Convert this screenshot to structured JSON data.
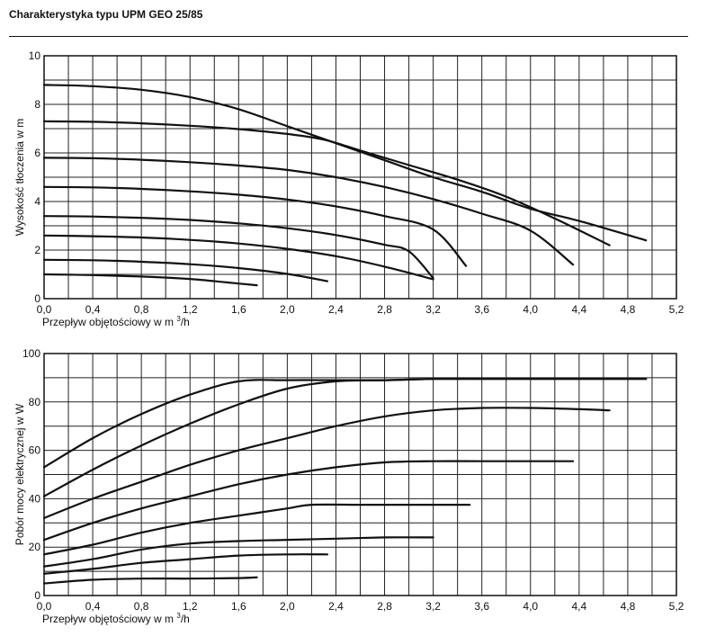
{
  "header": {
    "title": "Charakterystyka typu UPM GEO 25/85"
  },
  "chart_data": [
    {
      "type": "line",
      "xlabel": "Przepływ objętościowy w m",
      "xlabel_superscript": "3",
      "xlabel_suffix": "/h",
      "ylabel": "Wysokość tłoczenia w m",
      "xlim": [
        0,
        5.2
      ],
      "ylim": [
        0,
        10
      ],
      "x_ticks": [
        "0,0",
        "0,4",
        "0,8",
        "1,2",
        "1,6",
        "2,0",
        "2,4",
        "2,8",
        "3,2",
        "3,6",
        "4,0",
        "4,4",
        "4,8",
        "5,2"
      ],
      "y_ticks": [
        "0",
        "2",
        "4",
        "6",
        "8",
        "10"
      ],
      "grid": true,
      "series": [
        {
          "points": [
            [
              0,
              8.8
            ],
            [
              0.4,
              8.75
            ],
            [
              0.8,
              8.6
            ],
            [
              1.2,
              8.3
            ],
            [
              1.6,
              7.8
            ],
            [
              2.0,
              7.1
            ],
            [
              2.4,
              6.4
            ],
            [
              2.8,
              5.7
            ],
            [
              3.2,
              5.0
            ],
            [
              3.6,
              4.4
            ],
            [
              4.0,
              3.7
            ],
            [
              4.4,
              3.2
            ],
            [
              4.95,
              2.4
            ]
          ]
        },
        {
          "points": [
            [
              0,
              7.3
            ],
            [
              0.4,
              7.28
            ],
            [
              0.8,
              7.22
            ],
            [
              1.2,
              7.12
            ],
            [
              1.6,
              6.98
            ],
            [
              2.0,
              6.78
            ],
            [
              2.3,
              6.55
            ],
            [
              2.6,
              6.1
            ],
            [
              3.0,
              5.5
            ],
            [
              3.4,
              4.9
            ],
            [
              3.8,
              4.2
            ],
            [
              4.2,
              3.3
            ],
            [
              4.65,
              2.2
            ]
          ]
        },
        {
          "points": [
            [
              0,
              5.8
            ],
            [
              0.4,
              5.78
            ],
            [
              0.8,
              5.72
            ],
            [
              1.2,
              5.62
            ],
            [
              1.6,
              5.48
            ],
            [
              2.0,
              5.3
            ],
            [
              2.4,
              5.0
            ],
            [
              2.8,
              4.6
            ],
            [
              3.2,
              4.1
            ],
            [
              3.6,
              3.5
            ],
            [
              4.0,
              2.8
            ],
            [
              4.35,
              1.4
            ]
          ]
        },
        {
          "points": [
            [
              0,
              4.6
            ],
            [
              0.4,
              4.58
            ],
            [
              0.8,
              4.52
            ],
            [
              1.2,
              4.42
            ],
            [
              1.6,
              4.28
            ],
            [
              2.0,
              4.08
            ],
            [
              2.4,
              3.8
            ],
            [
              2.8,
              3.4
            ],
            [
              3.2,
              2.85
            ],
            [
              3.47,
              1.35
            ]
          ]
        },
        {
          "points": [
            [
              0,
              3.4
            ],
            [
              0.4,
              3.38
            ],
            [
              0.8,
              3.33
            ],
            [
              1.2,
              3.24
            ],
            [
              1.6,
              3.1
            ],
            [
              2.0,
              2.9
            ],
            [
              2.4,
              2.62
            ],
            [
              2.8,
              2.22
            ],
            [
              3.0,
              1.95
            ],
            [
              3.2,
              0.85
            ]
          ]
        },
        {
          "points": [
            [
              0,
              2.6
            ],
            [
              0.4,
              2.57
            ],
            [
              0.8,
              2.52
            ],
            [
              1.2,
              2.42
            ],
            [
              1.6,
              2.27
            ],
            [
              2.0,
              2.05
            ],
            [
              2.4,
              1.75
            ],
            [
              2.8,
              1.32
            ],
            [
              3.2,
              0.8
            ]
          ]
        },
        {
          "points": [
            [
              0,
              1.6
            ],
            [
              0.4,
              1.58
            ],
            [
              0.8,
              1.52
            ],
            [
              1.2,
              1.42
            ],
            [
              1.6,
              1.26
            ],
            [
              2.0,
              1.02
            ],
            [
              2.33,
              0.72
            ]
          ]
        },
        {
          "points": [
            [
              0,
              1.0
            ],
            [
              0.4,
              0.97
            ],
            [
              0.8,
              0.91
            ],
            [
              1.2,
              0.81
            ],
            [
              1.5,
              0.67
            ],
            [
              1.75,
              0.55
            ]
          ]
        }
      ]
    },
    {
      "type": "line",
      "xlabel": "Przepływ objętościowy w m",
      "xlabel_superscript": "3",
      "xlabel_suffix": "/h",
      "ylabel": "Pobór mocy elektrycznej w W",
      "xlim": [
        0,
        5.2
      ],
      "ylim": [
        0,
        100
      ],
      "x_ticks": [
        "0,0",
        "0,4",
        "0,8",
        "1,2",
        "1,6",
        "2,0",
        "2,4",
        "2,8",
        "3,2",
        "3,6",
        "4,0",
        "4,4",
        "4,8",
        "5,2"
      ],
      "y_ticks": [
        "0",
        "20",
        "40",
        "60",
        "80",
        "100"
      ],
      "grid": true,
      "series": [
        {
          "points": [
            [
              0,
              53
            ],
            [
              0.4,
              65
            ],
            [
              0.8,
              75
            ],
            [
              1.2,
              83
            ],
            [
              1.6,
              88.5
            ],
            [
              2.0,
              89
            ],
            [
              2.4,
              89
            ],
            [
              2.8,
              89
            ],
            [
              3.2,
              89.5
            ],
            [
              3.6,
              89.5
            ],
            [
              4.0,
              89.5
            ],
            [
              4.5,
              89.5
            ],
            [
              4.95,
              89.5
            ]
          ]
        },
        {
          "points": [
            [
              0,
              41
            ],
            [
              0.4,
              52
            ],
            [
              0.8,
              62
            ],
            [
              1.2,
              71
            ],
            [
              1.6,
              79
            ],
            [
              2.0,
              85.5
            ],
            [
              2.4,
              88.5
            ],
            [
              2.8,
              89
            ],
            [
              3.2,
              89.5
            ],
            [
              3.6,
              89.5
            ],
            [
              4.0,
              89.5
            ],
            [
              4.5,
              89.5
            ],
            [
              4.95,
              89.5
            ]
          ]
        },
        {
          "points": [
            [
              0,
              32
            ],
            [
              0.4,
              40
            ],
            [
              0.8,
              47
            ],
            [
              1.2,
              54
            ],
            [
              1.6,
              60
            ],
            [
              2.0,
              65
            ],
            [
              2.4,
              70
            ],
            [
              2.8,
              74
            ],
            [
              3.2,
              76.5
            ],
            [
              3.6,
              77.5
            ],
            [
              4.0,
              77.5
            ],
            [
              4.4,
              77
            ],
            [
              4.65,
              76.5
            ]
          ]
        },
        {
          "points": [
            [
              0,
              23
            ],
            [
              0.4,
              30
            ],
            [
              0.8,
              36
            ],
            [
              1.2,
              41
            ],
            [
              1.6,
              46
            ],
            [
              2.0,
              50
            ],
            [
              2.4,
              53
            ],
            [
              2.8,
              55
            ],
            [
              3.2,
              55.5
            ],
            [
              3.6,
              55.5
            ],
            [
              4.0,
              55.5
            ],
            [
              4.35,
              55.5
            ]
          ]
        },
        {
          "points": [
            [
              0,
              17
            ],
            [
              0.4,
              21
            ],
            [
              0.8,
              26
            ],
            [
              1.2,
              30
            ],
            [
              1.6,
              33
            ],
            [
              2.0,
              36
            ],
            [
              2.2,
              37.5
            ],
            [
              2.6,
              37.5
            ],
            [
              3.0,
              37.5
            ],
            [
              3.5,
              37.5
            ]
          ]
        },
        {
          "points": [
            [
              0,
              12
            ],
            [
              0.4,
              15
            ],
            [
              0.8,
              19
            ],
            [
              1.2,
              21.5
            ],
            [
              1.6,
              22.5
            ],
            [
              2.0,
              23
            ],
            [
              2.4,
              23.5
            ],
            [
              2.8,
              24
            ],
            [
              3.2,
              24
            ]
          ]
        },
        {
          "points": [
            [
              0,
              9
            ],
            [
              0.4,
              11
            ],
            [
              0.8,
              13.5
            ],
            [
              1.2,
              15
            ],
            [
              1.6,
              16.5
            ],
            [
              2.0,
              17
            ],
            [
              2.33,
              17
            ]
          ]
        },
        {
          "points": [
            [
              0,
              5
            ],
            [
              0.4,
              6.5
            ],
            [
              0.8,
              7
            ],
            [
              1.2,
              7
            ],
            [
              1.6,
              7.2
            ],
            [
              1.75,
              7.5
            ]
          ]
        }
      ]
    }
  ]
}
